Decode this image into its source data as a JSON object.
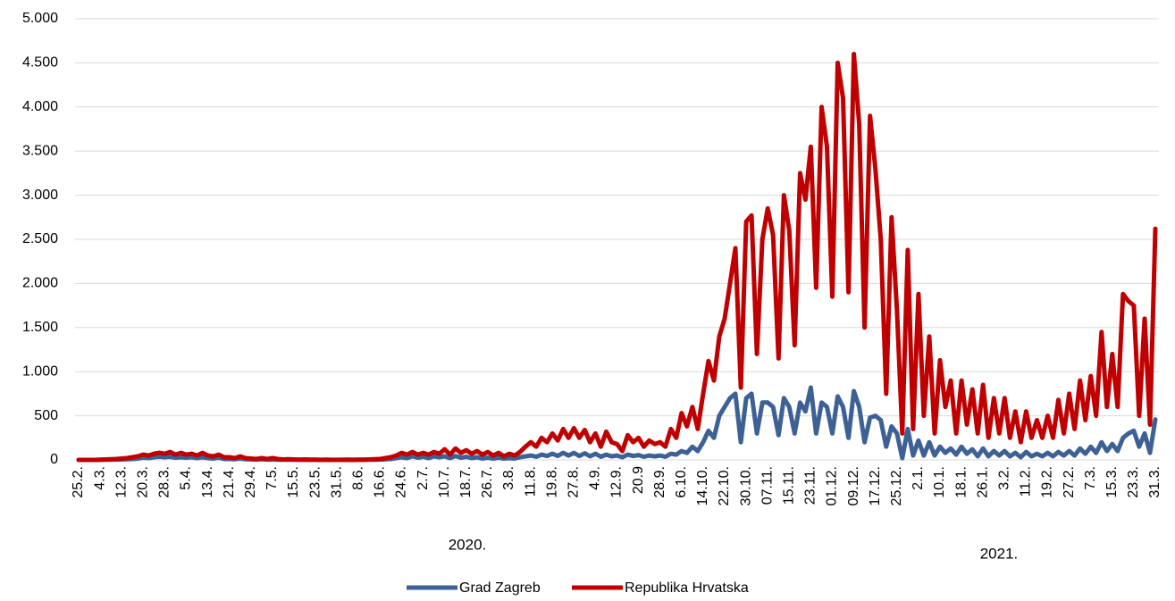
{
  "chart_data": {
    "type": "line",
    "categories": [
      "25.2.",
      null,
      null,
      null,
      "4.3.",
      null,
      null,
      null,
      "12.3.",
      null,
      null,
      null,
      "20.3.",
      null,
      null,
      null,
      "28.3.",
      null,
      null,
      null,
      "5.4.",
      null,
      null,
      null,
      "13.4.",
      null,
      null,
      null,
      "21.4.",
      null,
      null,
      null,
      "29.4.",
      null,
      null,
      null,
      "7.5.",
      null,
      null,
      null,
      "15.5.",
      null,
      null,
      null,
      "23.5.",
      null,
      null,
      null,
      "31.5.",
      null,
      null,
      null,
      "8.6.",
      null,
      null,
      null,
      "16.6.",
      null,
      null,
      null,
      "24.6.",
      null,
      null,
      null,
      "2.7.",
      null,
      null,
      null,
      "10.7.",
      null,
      null,
      null,
      "18.7.",
      null,
      null,
      null,
      "26.7.",
      null,
      null,
      null,
      "3.8.",
      null,
      null,
      null,
      "11.8.",
      null,
      null,
      null,
      "19.8.",
      null,
      null,
      null,
      "27.8.",
      null,
      null,
      null,
      "4.9.",
      null,
      null,
      null,
      "12.9.",
      null,
      null,
      null,
      "20.9",
      null,
      null,
      null,
      "28.9.",
      null,
      null,
      null,
      "6.10.",
      null,
      null,
      null,
      "14.10.",
      null,
      null,
      null,
      "22.10.",
      null,
      null,
      null,
      "30.10.",
      null,
      null,
      null,
      "07.11.",
      null,
      null,
      null,
      "15.11.",
      null,
      null,
      null,
      "23.11.",
      null,
      null,
      null,
      "01.12.",
      null,
      null,
      null,
      "09.12.",
      null,
      null,
      null,
      "17.12.",
      null,
      null,
      null,
      "25.12.",
      null,
      null,
      null,
      "2.1.",
      null,
      null,
      null,
      "10.1.",
      null,
      null,
      null,
      "18.1.",
      null,
      null,
      null,
      "26.1.",
      null,
      null,
      null,
      "3.2.",
      null,
      null,
      null,
      "11.2.",
      null,
      null,
      null,
      "19.2.",
      null,
      null,
      null,
      "27.2.",
      null,
      null,
      null,
      "7.3.",
      null,
      null,
      null,
      "15.3.",
      null,
      null,
      null,
      "23.3.",
      null,
      null,
      null,
      "31.3."
    ],
    "series": [
      {
        "name": "Grad Zagreb",
        "color": "#3d6195",
        "values": [
          0,
          0,
          0,
          0,
          1,
          2,
          3,
          4,
          5,
          8,
          10,
          15,
          25,
          20,
          30,
          35,
          30,
          35,
          25,
          30,
          25,
          30,
          20,
          30,
          20,
          15,
          25,
          10,
          10,
          8,
          15,
          8,
          6,
          5,
          8,
          4,
          5,
          3,
          2,
          3,
          2,
          1,
          2,
          1,
          1,
          0,
          1,
          0,
          0,
          1,
          1,
          0,
          1,
          1,
          2,
          3,
          4,
          6,
          10,
          20,
          30,
          20,
          40,
          25,
          35,
          20,
          40,
          30,
          40,
          20,
          45,
          25,
          35,
          20,
          30,
          15,
          25,
          15,
          25,
          15,
          20,
          15,
          30,
          40,
          50,
          35,
          60,
          45,
          70,
          45,
          80,
          50,
          80,
          45,
          75,
          40,
          70,
          35,
          60,
          40,
          50,
          30,
          60,
          45,
          55,
          35,
          50,
          40,
          50,
          35,
          70,
          60,
          100,
          80,
          150,
          100,
          200,
          330,
          250,
          500,
          600,
          700,
          750,
          200,
          700,
          750,
          300,
          650,
          650,
          600,
          280,
          700,
          600,
          300,
          650,
          550,
          820,
          300,
          650,
          600,
          300,
          720,
          600,
          250,
          780,
          600,
          200,
          480,
          500,
          450,
          150,
          380,
          300,
          20,
          350,
          50,
          220,
          50,
          200,
          50,
          150,
          80,
          130,
          60,
          150,
          70,
          120,
          40,
          130,
          40,
          100,
          50,
          100,
          40,
          80,
          30,
          90,
          40,
          70,
          40,
          80,
          40,
          90,
          50,
          100,
          50,
          130,
          70,
          150,
          80,
          200,
          100,
          180,
          100,
          250,
          300,
          330,
          150,
          300,
          80,
          460
        ]
      },
      {
        "name": "Republika Hrvatska",
        "color": "#c00000",
        "values": [
          0,
          0,
          0,
          0,
          2,
          5,
          8,
          10,
          15,
          20,
          30,
          40,
          60,
          50,
          70,
          80,
          70,
          90,
          60,
          80,
          60,
          70,
          50,
          80,
          50,
          40,
          60,
          30,
          30,
          20,
          40,
          20,
          15,
          10,
          20,
          10,
          20,
          10,
          5,
          8,
          5,
          3,
          5,
          2,
          2,
          1,
          2,
          1,
          1,
          1,
          2,
          1,
          2,
          3,
          5,
          8,
          10,
          20,
          30,
          50,
          80,
          60,
          90,
          60,
          80,
          60,
          90,
          70,
          120,
          60,
          130,
          80,
          110,
          70,
          100,
          60,
          90,
          50,
          80,
          40,
          70,
          50,
          90,
          150,
          200,
          150,
          250,
          200,
          300,
          220,
          350,
          250,
          360,
          250,
          340,
          200,
          300,
          150,
          320,
          200,
          180,
          100,
          280,
          200,
          250,
          150,
          220,
          180,
          200,
          150,
          350,
          250,
          530,
          380,
          600,
          350,
          750,
          1120,
          900,
          1400,
          1600,
          2000,
          2400,
          820,
          2700,
          2770,
          1200,
          2500,
          2850,
          2550,
          1150,
          3000,
          2600,
          1300,
          3250,
          2950,
          3550,
          1950,
          4000,
          3550,
          1850,
          4500,
          4100,
          1900,
          4600,
          3800,
          1500,
          3900,
          3300,
          2500,
          750,
          2750,
          1700,
          300,
          2380,
          350,
          1880,
          500,
          1400,
          300,
          1130,
          600,
          900,
          300,
          900,
          400,
          800,
          300,
          850,
          250,
          700,
          300,
          700,
          250,
          550,
          200,
          550,
          250,
          450,
          250,
          500,
          250,
          680,
          300,
          750,
          350,
          900,
          450,
          950,
          500,
          1450,
          600,
          1200,
          600,
          1880,
          1800,
          1750,
          500,
          1600,
          400,
          2620
        ]
      }
    ],
    "year_labels": [
      "2020.",
      "2021."
    ],
    "ylim": [
      0,
      5000
    ],
    "yticks": [
      0,
      500,
      {
        "value": 1000,
        "label": "1.000"
      },
      {
        "value": 1500,
        "label": "1.500"
      },
      {
        "value": 2000,
        "label": "2.000"
      },
      {
        "value": 2500,
        "label": "2.500"
      },
      {
        "value": 3000,
        "label": "3.000"
      },
      {
        "value": 3500,
        "label": "3.500"
      },
      {
        "value": 4000,
        "label": "4.000"
      },
      {
        "value": 4500,
        "label": "4.500"
      },
      {
        "value": 5000,
        "label": "5.000"
      }
    ],
    "grid": true,
    "legend": "bottom"
  }
}
